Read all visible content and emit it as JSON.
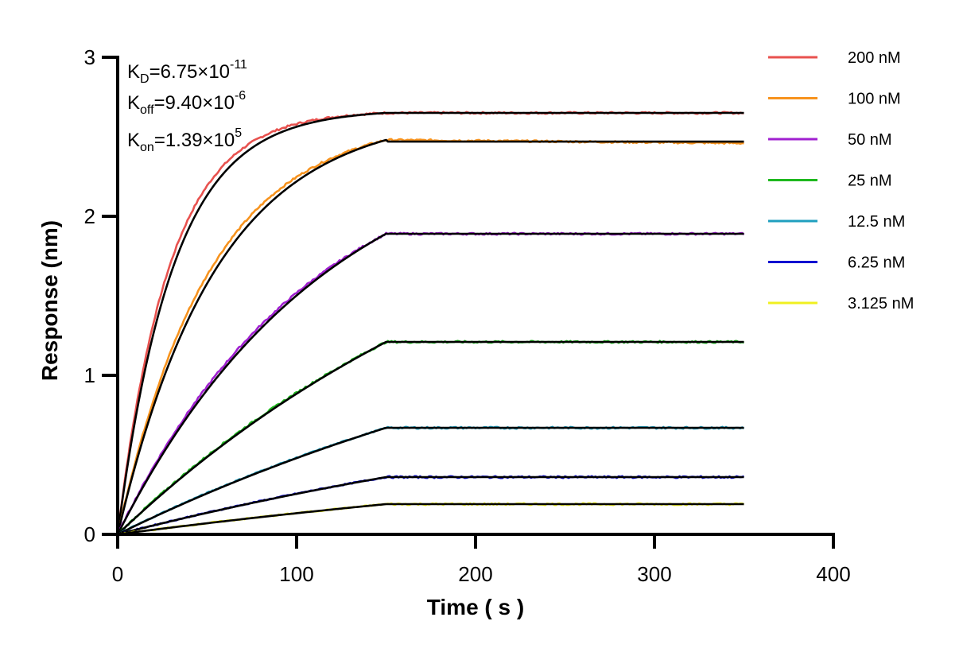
{
  "chart_data": {
    "type": "line",
    "title": "",
    "xlabel": "Time ( s )",
    "ylabel": "Response (nm)",
    "xlim": [
      0,
      400
    ],
    "ylim": [
      0,
      3
    ],
    "xticks": [
      0,
      100,
      200,
      300,
      400
    ],
    "yticks": [
      0,
      1,
      2,
      3
    ],
    "xtick_labels": [
      "0",
      "100",
      "200",
      "300",
      "400"
    ],
    "ytick_labels": [
      "0",
      "1",
      "2",
      "3"
    ],
    "grid": false,
    "legend_position": "top-right",
    "association_end": 150,
    "x_end": 350,
    "fit_color": "#000000",
    "annotations": [
      {
        "base": "K",
        "sub": "D",
        "value": "=6.75×10",
        "exp": "-11"
      },
      {
        "base": "K",
        "sub": "off",
        "value": "=9.40×10",
        "exp": "-6"
      },
      {
        "base": "K",
        "sub": "on",
        "value": "=1.39×10",
        "exp": "5"
      }
    ],
    "series": [
      {
        "name": "200 nM",
        "color": "#e8524f",
        "plateau": 2.65,
        "dissoc_end": 2.65,
        "k": 0.032
      },
      {
        "name": "100 nM",
        "color": "#f7931e",
        "plateau": 2.48,
        "dissoc_end": 2.46,
        "k": 0.018
      },
      {
        "name": "50 nM",
        "color": "#a020d0",
        "plateau": 1.89,
        "dissoc_end": 1.89,
        "k": 0.0085
      },
      {
        "name": "25 nM",
        "color": "#1fb81f",
        "plateau": 1.21,
        "dissoc_end": 1.21,
        "k": 0.004
      },
      {
        "name": "12.5 nM",
        "color": "#1f9fbf",
        "plateau": 0.67,
        "dissoc_end": 0.67,
        "k": 0.003
      },
      {
        "name": "6.25 nM",
        "color": "#1010d0",
        "plateau": 0.36,
        "dissoc_end": 0.36,
        "k": 0.0025
      },
      {
        "name": "3.125 nM",
        "color": "#f0f020",
        "plateau": 0.19,
        "dissoc_end": 0.19,
        "k": 0.002
      }
    ]
  }
}
